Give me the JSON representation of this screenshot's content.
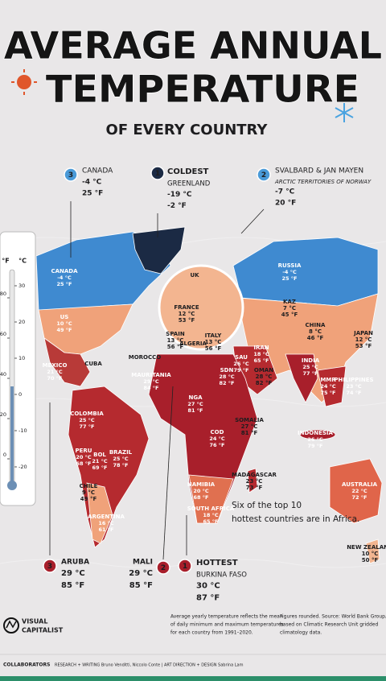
{
  "header": {
    "title_lines": [
      "AVERAGE ANNUAL",
      "TEMPERATURE"
    ],
    "subtitle": "OF EVERY COUNTRY"
  },
  "callouts": [
    {
      "rank": "3",
      "country": "CANADA",
      "celsius": "-4 °C",
      "fahrenheit": "25 °F"
    },
    {
      "rank": "1",
      "label": "COLDEST",
      "country": "GREENLAND",
      "celsius": "-19 °C",
      "fahrenheit": "-2 °F"
    },
    {
      "rank": "2",
      "country": "SVALBARD & JAN MAYEN",
      "note": "ARCTIC TERRITORIES OF NORWAY",
      "celsius": "-7 °C",
      "fahrenheit": "20 °F"
    },
    {
      "rank": "3",
      "country": "ARUBA",
      "celsius": "29 °C",
      "fahrenheit": "85 °F"
    },
    {
      "rank": "2",
      "country": "MALI",
      "celsius": "29 °C",
      "fahrenheit": "85 °F"
    },
    {
      "rank": "1",
      "label": "HOTTEST",
      "country": "BURKINA FASO",
      "celsius": "30 °C",
      "fahrenheit": "87 °F"
    }
  ],
  "map_labels": [
    {
      "name": "CANADA",
      "celsius": "-4 °C",
      "fahrenheit": "25 °F"
    },
    {
      "name": "US",
      "celsius": "10 °C",
      "fahrenheit": "49 °F"
    },
    {
      "name": "MEXICO",
      "celsius": "21 °C",
      "fahrenheit": "70 °F"
    },
    {
      "name": "CUBA"
    },
    {
      "name": "RUSSIA",
      "celsius": "-4 °C",
      "fahrenheit": "25 °F"
    },
    {
      "name": "UK"
    },
    {
      "name": "FRANCE",
      "celsius": "12 °C",
      "fahrenheit": "53 °F"
    },
    {
      "name": "SPAIN",
      "celsius": "13 °C",
      "fahrenheit": "56 °F"
    },
    {
      "name": "ALGERIA"
    },
    {
      "name": "ITALY",
      "celsius": "13 °C",
      "fahrenheit": "56 °F"
    },
    {
      "name": "IRAN",
      "celsius": "18 °C",
      "fahrenheit": "65 °F"
    },
    {
      "name": "KAZ",
      "celsius": "7 °C",
      "fahrenheit": "45 °F"
    },
    {
      "name": "CHINA",
      "celsius": "8 °C",
      "fahrenheit": "46 °F"
    },
    {
      "name": "JAPAN",
      "celsius": "12 °C",
      "fahrenheit": "53 °F"
    },
    {
      "name": "INDIA",
      "celsius": "25 °C",
      "fahrenheit": "77 °F"
    },
    {
      "name": "SAU",
      "celsius": "26 °C",
      "fahrenheit": "79 °F"
    },
    {
      "name": "OMAN",
      "celsius": "28 °C",
      "fahrenheit": "82 °F"
    },
    {
      "name": "MOROCCO"
    },
    {
      "name": "MAURITANIA",
      "celsius": "29 °C",
      "fahrenheit": "84 °F"
    },
    {
      "name": "SDN",
      "celsius": "28 °C",
      "fahrenheit": "82 °F"
    },
    {
      "name": "NGA",
      "celsius": "27 °C",
      "fahrenheit": "81 °F"
    },
    {
      "name": "COD",
      "celsius": "24 °C",
      "fahrenheit": "76 °F"
    },
    {
      "name": "SOMALIA",
      "celsius": "27 °C",
      "fahrenheit": "81 °F"
    },
    {
      "name": "MMR",
      "celsius": "24 °C",
      "fahrenheit": "75 °F"
    },
    {
      "name": "PHILIPPINES",
      "celsius": "23 °C",
      "fahrenheit": "74 °F"
    },
    {
      "name": "INDONESIA",
      "celsius": "26 °C",
      "fahrenheit": "79 °F"
    },
    {
      "name": "MADAGASCAR",
      "celsius": "23 °C",
      "fahrenheit": "73 °F"
    },
    {
      "name": "AUSTRALIA",
      "celsius": "22 °C",
      "fahrenheit": "72 °F"
    },
    {
      "name": "NEW ZEALAND",
      "celsius": "10 °C",
      "fahrenheit": "50 °F"
    },
    {
      "name": "COLOMBIA",
      "celsius": "25 °C",
      "fahrenheit": "77 °F"
    },
    {
      "name": "PERU",
      "celsius": "20 °C",
      "fahrenheit": "68 °F"
    },
    {
      "name": "BOL",
      "celsius": "21 °C",
      "fahrenheit": "69 °F"
    },
    {
      "name": "BRAZIL",
      "celsius": "25 °C",
      "fahrenheit": "78 °F"
    },
    {
      "name": "CHILE",
      "celsius": "9 °C",
      "fahrenheit": "49 °F"
    },
    {
      "name": "ARGENTINA",
      "celsius": "16 °C",
      "fahrenheit": "61 °F"
    },
    {
      "name": "NAMIBIA",
      "celsius": "20 °C",
      "fahrenheit": "68 °F"
    },
    {
      "name": "SOUTH AFRICA",
      "celsius": "18 °C",
      "fahrenheit": "65 °F"
    }
  ],
  "thermometer": {
    "fahrenheit_label": "°F",
    "celsius_label": "°C",
    "fahrenheit_ticks": [
      80,
      60,
      40,
      20,
      0
    ],
    "celsius_ticks": [
      30,
      20,
      10,
      0,
      -10,
      -20
    ]
  },
  "annotation": "Six of the top 10 hottest countries are in Africa.",
  "footer": {
    "logo": [
      "VISUAL",
      "CAPITALIST"
    ],
    "method_note": [
      "Average yearly temperature reflects the mean",
      "of daily minimum and maximum temperatures",
      "for each country from 1991–2020."
    ],
    "source_note": [
      "Figures rounded. Source: World Bank Group,",
      "based on Climatic Research Unit gridded",
      "climatology data."
    ],
    "collaborators": "COLLABORATORS",
    "credits": "RESEARCH + WRITING Bruno Venditti, Niccolo Conte  |  ART DIRECTION + DESIGN Sabrina Lam"
  }
}
